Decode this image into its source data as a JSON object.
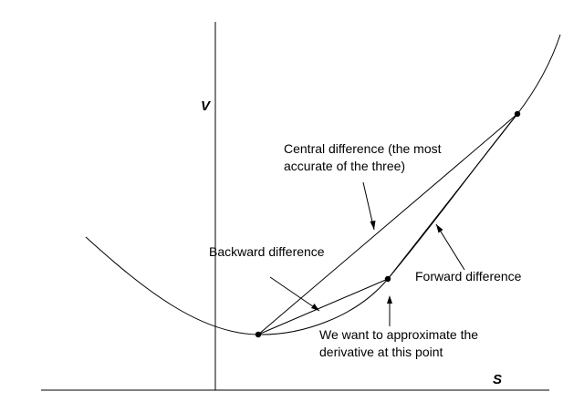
{
  "axes": {
    "y_label": "V",
    "x_label": "S"
  },
  "labels": {
    "central_line1": "Central difference (the most",
    "central_line2": "accurate of the three)",
    "backward": "Backward difference",
    "forward": "Forward difference",
    "point_line1": "We want to approximate the",
    "point_line2": "derivative at this point"
  },
  "colors": {
    "ink": "#000000",
    "background": "#ffffff"
  }
}
